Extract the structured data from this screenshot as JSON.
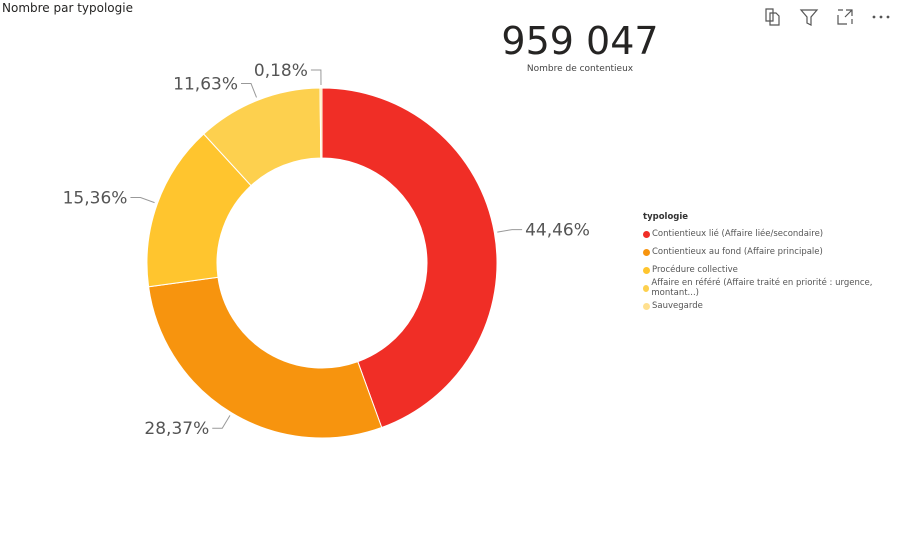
{
  "title": "Nombre par typologie",
  "kpi": {
    "value": "959 047",
    "label": "Nombre de contentieux"
  },
  "icons": [
    "copy-icon",
    "filter-icon",
    "expand-icon",
    "more-icon"
  ],
  "chart_data": {
    "type": "pie",
    "donut": true,
    "title": "Nombre par typologie",
    "legend_title": "typologie",
    "legend_position": "right",
    "categories": [
      "Contientieux lié (Affaire liée/secondaire)",
      "Contientieux au fond (Affaire principale)",
      "Procédure collective",
      "Affaire en référé (Affaire traité en priorité : urgence, montant...)",
      "Sauvegarde"
    ],
    "values": [
      44.46,
      28.37,
      15.36,
      11.63,
      0.18
    ],
    "labels": [
      "44,46%",
      "28,37%",
      "15,36%",
      "11,63%",
      "0,18%"
    ],
    "colors": [
      "#F02E26",
      "#F7940E",
      "#FFC52E",
      "#FDD04E",
      "#FFE08F"
    ]
  }
}
